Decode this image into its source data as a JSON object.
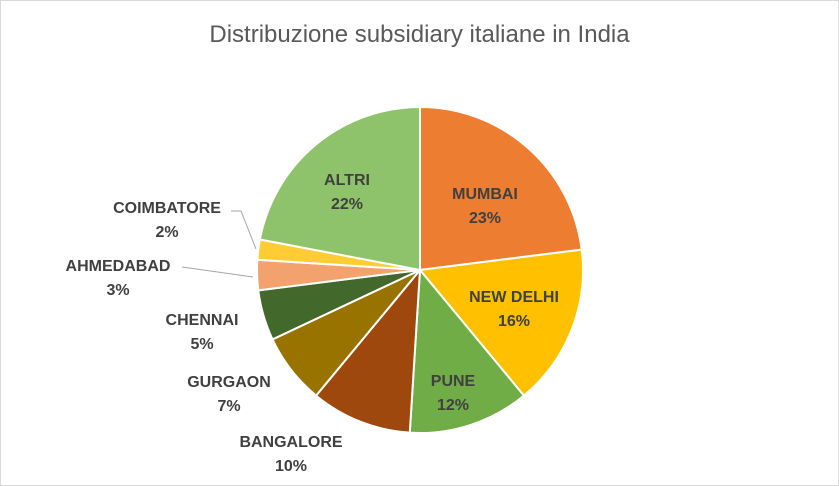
{
  "chart_data": {
    "type": "pie",
    "title": "Distribuzione subsidiary italiane in India",
    "slices": [
      {
        "label": "MUMBAI",
        "value": 23,
        "value_text": "23%",
        "color": "#ED7D31",
        "label_color": "#404040",
        "label_pos": "inside"
      },
      {
        "label": "NEW DELHI",
        "value": 16,
        "value_text": "16%",
        "color": "#FFC000",
        "label_color": "#404040",
        "label_pos": "inside"
      },
      {
        "label": "PUNE",
        "value": 12,
        "value_text": "12%",
        "color": "#70AD47",
        "label_color": "#404040",
        "label_pos": "inside"
      },
      {
        "label": "BANGALORE",
        "value": 10,
        "value_text": "10%",
        "color": "#9E480E",
        "label_color": "#404040",
        "label_pos": "outside"
      },
      {
        "label": "GURGAON",
        "value": 7,
        "value_text": "7%",
        "color": "#997300",
        "label_color": "#404040",
        "label_pos": "outside"
      },
      {
        "label": "CHENNAI",
        "value": 5,
        "value_text": "5%",
        "color": "#43682B",
        "label_color": "#404040",
        "label_pos": "outside"
      },
      {
        "label": "AHMEDABAD",
        "value": 3,
        "value_text": "3%",
        "color": "#F4A26D",
        "label_color": "#404040",
        "label_pos": "outside-leader"
      },
      {
        "label": "COIMBATORE",
        "value": 2,
        "value_text": "2%",
        "color": "#FFCD33",
        "label_color": "#404040",
        "label_pos": "outside-leader"
      },
      {
        "label": "ALTRI",
        "value": 22,
        "value_text": "22%",
        "color": "#8FC36B",
        "label_color": "#404040",
        "label_pos": "inside"
      }
    ],
    "start_angle_deg": 0,
    "direction": "clockwise",
    "legend": "none"
  }
}
